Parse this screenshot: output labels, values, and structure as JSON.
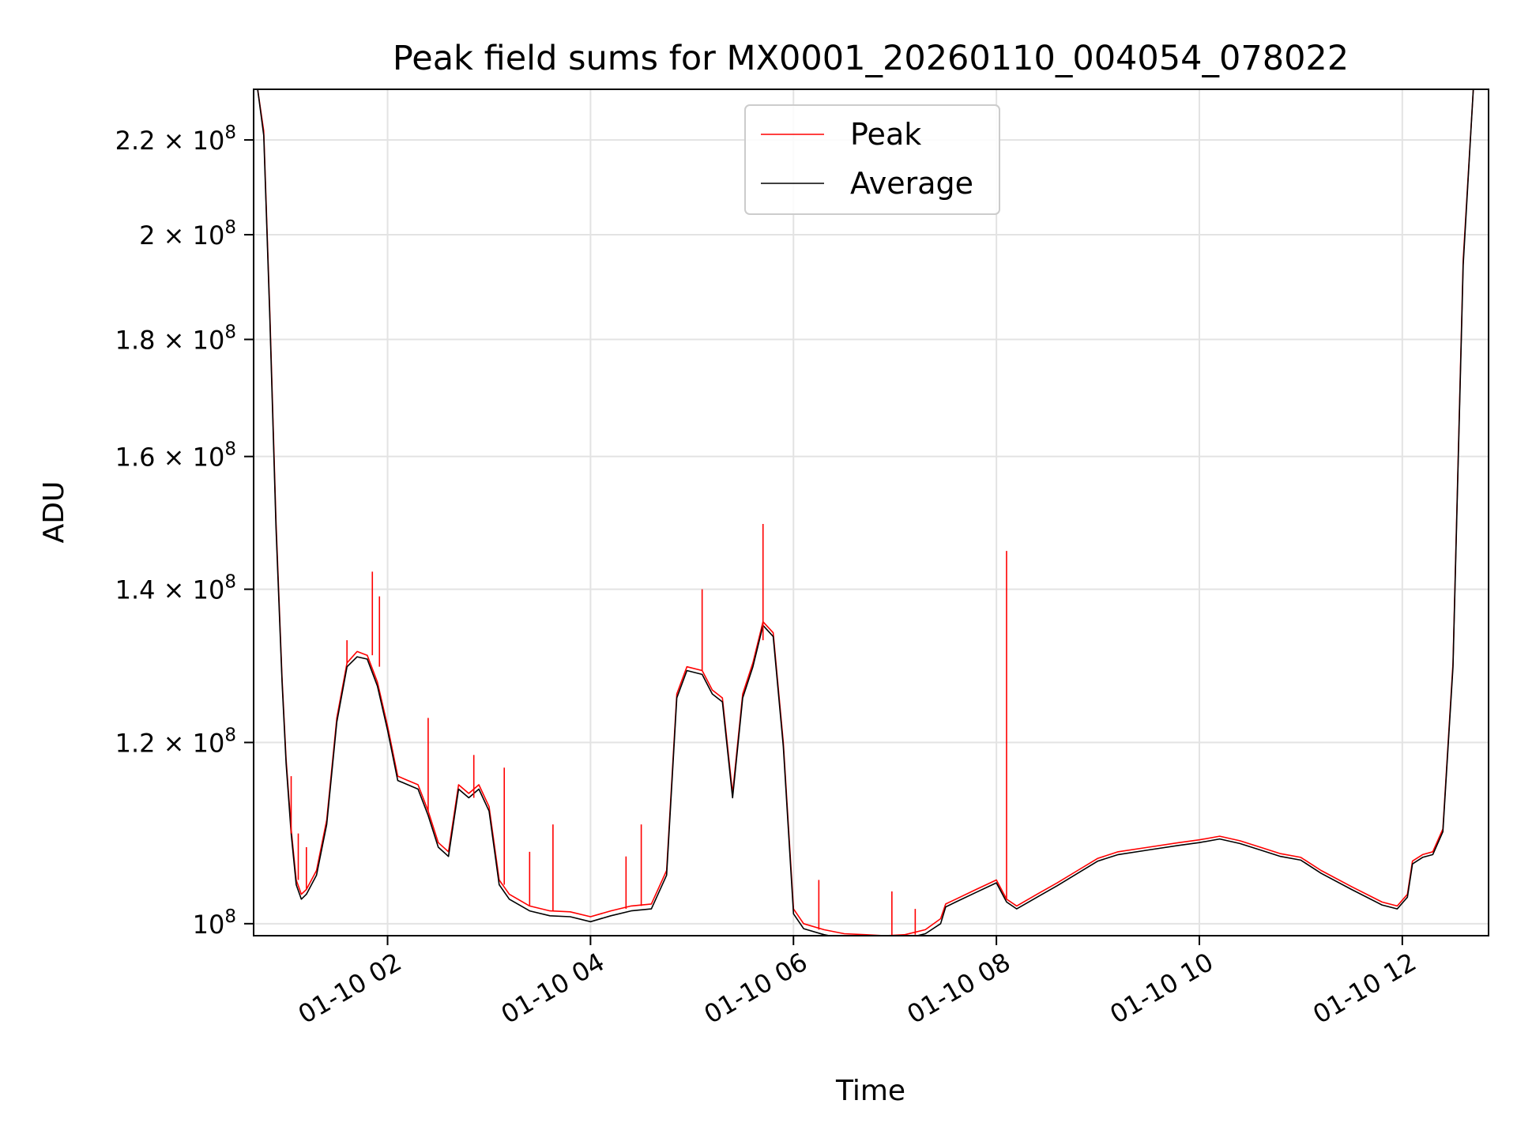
{
  "chart_data": {
    "type": "line",
    "title": "Peak field sums for MX0001_20260110_004054_078022",
    "xlabel": "Time",
    "ylabel": "ADU",
    "yscale": "log",
    "xlim": [
      0.68,
      12.85
    ],
    "ylim": [
      98800000,
      231500000
    ],
    "grid": true,
    "legend_position": "upper-center",
    "x_unit": "hours since 2026-01-10 00:00",
    "x_ticks": [
      {
        "value": 2,
        "label": "01-10 02"
      },
      {
        "value": 4,
        "label": "01-10 04"
      },
      {
        "value": 6,
        "label": "01-10 06"
      },
      {
        "value": 8,
        "label": "01-10 08"
      },
      {
        "value": 10,
        "label": "01-10 10"
      },
      {
        "value": 12,
        "label": "01-10 12"
      }
    ],
    "y_ticks": [
      {
        "value": 100000000,
        "mantissa": "",
        "exp": "8"
      },
      {
        "value": 120000000,
        "mantissa": "1.2",
        "exp": "8"
      },
      {
        "value": 140000000,
        "mantissa": "1.4",
        "exp": "8"
      },
      {
        "value": 160000000,
        "mantissa": "1.6",
        "exp": "8"
      },
      {
        "value": 180000000,
        "mantissa": "1.8",
        "exp": "8"
      },
      {
        "value": 200000000,
        "mantissa": "2",
        "exp": "8"
      },
      {
        "value": 220000000,
        "mantissa": "2.2",
        "exp": "8"
      }
    ],
    "colors": {
      "peak": "#ff0000",
      "average": "#000000",
      "grid": "#e3e3e3"
    },
    "series": [
      {
        "name": "Peak",
        "color": "#ff0000",
        "x": [
          0.72,
          0.78,
          0.84,
          0.9,
          0.96,
          1.0,
          1.05,
          1.1,
          1.15,
          1.2,
          1.3,
          1.4,
          1.5,
          1.6,
          1.7,
          1.8,
          1.9,
          2.0,
          2.1,
          2.2,
          2.3,
          2.4,
          2.5,
          2.6,
          2.7,
          2.8,
          2.9,
          3.0,
          3.1,
          3.2,
          3.4,
          3.6,
          3.8,
          4.0,
          4.2,
          4.4,
          4.6,
          4.75,
          4.85,
          4.95,
          5.1,
          5.2,
          5.3,
          5.4,
          5.5,
          5.6,
          5.7,
          5.8,
          5.9,
          6.0,
          6.1,
          6.3,
          6.5,
          6.7,
          6.9,
          7.1,
          7.3,
          7.45,
          7.5,
          7.6,
          7.8,
          8.0,
          8.1,
          8.2,
          8.4,
          8.6,
          8.8,
          9.0,
          9.2,
          9.5,
          9.8,
          10.0,
          10.2,
          10.4,
          10.6,
          10.8,
          11.0,
          11.2,
          11.5,
          11.8,
          11.95,
          12.05,
          12.1,
          12.2,
          12.3,
          12.4,
          12.5,
          12.6,
          12.7,
          12.8
        ],
        "values": [
          231500000,
          222000000,
          185000000,
          150000000,
          128000000,
          118000000,
          110000000,
          104500000,
          103000000,
          103500000,
          105500000,
          111000000,
          123000000,
          130000000,
          131500000,
          131000000,
          127500000,
          122000000,
          116000000,
          115500000,
          115000000,
          112000000,
          108500000,
          107500000,
          115000000,
          114000000,
          115000000,
          112500000,
          104500000,
          103000000,
          101800000,
          101300000,
          101200000,
          100700000,
          101300000,
          101800000,
          102000000,
          105500000,
          126000000,
          129500000,
          129000000,
          126500000,
          125500000,
          114000000,
          126000000,
          130000000,
          135500000,
          134000000,
          120000000,
          101500000,
          100000000,
          99400000,
          99000000,
          98900000,
          98800000,
          98900000,
          99400000,
          100500000,
          102000000,
          102500000,
          103500000,
          104500000,
          102500000,
          101800000,
          103000000,
          104200000,
          105500000,
          106800000,
          107500000,
          108000000,
          108500000,
          108800000,
          109200000,
          108700000,
          108000000,
          107300000,
          106900000,
          105500000,
          103800000,
          102200000,
          101800000,
          103000000,
          106500000,
          107200000,
          107500000,
          110000000,
          130000000,
          195000000,
          231500000,
          231500000
        ]
      },
      {
        "name": "Average",
        "color": "#000000",
        "x": [
          0.72,
          0.78,
          0.84,
          0.9,
          0.96,
          1.0,
          1.05,
          1.1,
          1.15,
          1.2,
          1.3,
          1.4,
          1.5,
          1.6,
          1.7,
          1.8,
          1.9,
          2.0,
          2.1,
          2.2,
          2.3,
          2.4,
          2.5,
          2.6,
          2.7,
          2.8,
          2.9,
          3.0,
          3.1,
          3.2,
          3.4,
          3.6,
          3.8,
          4.0,
          4.2,
          4.4,
          4.6,
          4.75,
          4.85,
          4.95,
          5.1,
          5.2,
          5.3,
          5.4,
          5.5,
          5.6,
          5.7,
          5.8,
          5.9,
          6.0,
          6.1,
          6.3,
          6.5,
          6.7,
          6.9,
          7.1,
          7.3,
          7.45,
          7.5,
          7.6,
          7.8,
          8.0,
          8.1,
          8.2,
          8.4,
          8.6,
          8.8,
          9.0,
          9.2,
          9.5,
          9.8,
          10.0,
          10.2,
          10.4,
          10.6,
          10.8,
          11.0,
          11.2,
          11.5,
          11.8,
          11.95,
          12.05,
          12.1,
          12.2,
          12.3,
          12.4,
          12.5,
          12.6,
          12.7,
          12.8
        ],
        "values": [
          231500000,
          221000000,
          184000000,
          149000000,
          127500000,
          117500000,
          109500000,
          104000000,
          102500000,
          103000000,
          105000000,
          110500000,
          122500000,
          129500000,
          130800000,
          130500000,
          127000000,
          121500000,
          115500000,
          115000000,
          114500000,
          111500000,
          108000000,
          107000000,
          114500000,
          113500000,
          114500000,
          112000000,
          104000000,
          102500000,
          101300000,
          100800000,
          100700000,
          100200000,
          100800000,
          101300000,
          101500000,
          105000000,
          125500000,
          129000000,
          128500000,
          126000000,
          125000000,
          113500000,
          125500000,
          129500000,
          135000000,
          133500000,
          119500000,
          101000000,
          99500000,
          98900000,
          98500000,
          98500000,
          98400000,
          98500000,
          99000000,
          100000000,
          101700000,
          102200000,
          103200000,
          104200000,
          102200000,
          101500000,
          102700000,
          103900000,
          105200000,
          106500000,
          107200000,
          107700000,
          108200000,
          108500000,
          108900000,
          108400000,
          107700000,
          107000000,
          106600000,
          105200000,
          103500000,
          101900000,
          101500000,
          102700000,
          106200000,
          106900000,
          107200000,
          109700000,
          129500000,
          194000000,
          231500000,
          231500000
        ]
      }
    ],
    "spikes": [
      {
        "series": "Peak",
        "x": 1.05,
        "base": 109500000,
        "top": 116000000
      },
      {
        "series": "Peak",
        "x": 1.12,
        "base": 104500000,
        "top": 109500000
      },
      {
        "series": "Peak",
        "x": 1.2,
        "base": 103500000,
        "top": 108000000
      },
      {
        "series": "Peak",
        "x": 1.6,
        "base": 130000000,
        "top": 133000000
      },
      {
        "series": "Peak",
        "x": 1.85,
        "base": 131000000,
        "top": 142500000
      },
      {
        "series": "Peak",
        "x": 1.92,
        "base": 129500000,
        "top": 139000000
      },
      {
        "series": "Peak",
        "x": 2.4,
        "base": 112000000,
        "top": 123000000
      },
      {
        "series": "Peak",
        "x": 2.85,
        "base": 113500000,
        "top": 118500000
      },
      {
        "series": "Peak",
        "x": 3.15,
        "base": 104000000,
        "top": 117000000
      },
      {
        "series": "Peak",
        "x": 3.4,
        "base": 101800000,
        "top": 107500000
      },
      {
        "series": "Peak",
        "x": 3.63,
        "base": 101300000,
        "top": 110500000
      },
      {
        "series": "Peak",
        "x": 4.35,
        "base": 101500000,
        "top": 107000000
      },
      {
        "series": "Peak",
        "x": 4.5,
        "base": 101800000,
        "top": 110500000
      },
      {
        "series": "Peak",
        "x": 5.1,
        "base": 129000000,
        "top": 140000000
      },
      {
        "series": "Peak",
        "x": 5.7,
        "base": 133000000,
        "top": 149500000
      },
      {
        "series": "Peak",
        "x": 6.25,
        "base": 99400000,
        "top": 104500000
      },
      {
        "series": "Peak",
        "x": 6.97,
        "base": 98800000,
        "top": 103300000
      },
      {
        "series": "Peak",
        "x": 7.2,
        "base": 98900000,
        "top": 101500000
      },
      {
        "series": "Peak",
        "x": 8.1,
        "base": 102500000,
        "top": 145500000
      }
    ]
  }
}
